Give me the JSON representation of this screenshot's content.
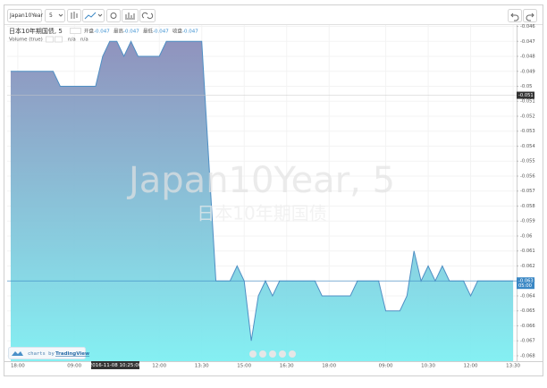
{
  "toolbar": {
    "symbol": "Japan10Year",
    "interval": "5"
  },
  "legend": {
    "title": "日本10年期国债, 5",
    "ohlc": [
      {
        "label": "开盘",
        "value": -0.047
      },
      {
        "label": "最高",
        "value": -0.047
      },
      {
        "label": "最低",
        "value": -0.047
      },
      {
        "label": "收盘",
        "value": -0.047
      }
    ],
    "volume": "Volume (true)",
    "volume_values": [
      "n/a",
      "n/a"
    ]
  },
  "branding": {
    "prefix": "charts by",
    "name": "TradingView"
  },
  "chart_data": {
    "type": "area",
    "watermark": "Japan10Year, 5",
    "watermark_sub": "日本10年期国债",
    "categories": [
      null,
      "18:00",
      null,
      null,
      null,
      null,
      null,
      null,
      null,
      "09:00",
      null,
      null,
      null,
      null,
      null,
      null,
      null,
      null,
      null,
      null,
      null,
      "12:00",
      null,
      null,
      null,
      null,
      null,
      "13:30",
      null,
      null,
      null,
      null,
      null,
      "15:00",
      null,
      null,
      null,
      null,
      null,
      "16:30",
      null,
      null,
      null,
      null,
      null,
      "18:00",
      null,
      null,
      null,
      null,
      null,
      null,
      null,
      "09:00",
      null,
      null,
      null,
      null,
      null,
      "10:30",
      null,
      null,
      null,
      null,
      null,
      "12:00",
      null,
      null,
      null,
      null,
      null,
      "13:30"
    ],
    "values": [
      -0.049,
      -0.049,
      -0.049,
      -0.049,
      -0.049,
      -0.049,
      -0.049,
      -0.05,
      -0.05,
      -0.05,
      -0.05,
      -0.05,
      -0.05,
      -0.048,
      -0.047,
      -0.047,
      -0.048,
      -0.047,
      -0.048,
      -0.048,
      -0.048,
      -0.048,
      -0.047,
      -0.047,
      -0.047,
      -0.047,
      -0.047,
      -0.047,
      -0.055,
      -0.063,
      -0.063,
      -0.063,
      -0.062,
      -0.063,
      -0.067,
      -0.064,
      -0.063,
      -0.064,
      -0.063,
      -0.063,
      -0.063,
      -0.063,
      -0.063,
      -0.063,
      -0.064,
      -0.064,
      -0.064,
      -0.064,
      -0.064,
      -0.063,
      -0.063,
      -0.063,
      -0.063,
      -0.065,
      -0.065,
      -0.065,
      -0.064,
      -0.061,
      -0.063,
      -0.062,
      -0.063,
      -0.062,
      -0.063,
      -0.063,
      -0.063,
      -0.064,
      -0.063,
      -0.063,
      -0.063,
      -0.063,
      -0.063,
      -0.063
    ],
    "color": "#4f8fc4",
    "fill_top": "#8a8dba",
    "fill_bottom": "#7eeff2",
    "ylim": [
      -0.06836,
      -0.04591
    ],
    "yticks": [
      -0.046,
      -0.047,
      -0.048,
      -0.049,
      -0.05,
      -0.051,
      -0.052,
      -0.053,
      -0.054,
      -0.055,
      -0.056,
      -0.057,
      -0.058,
      -0.059,
      -0.06,
      -0.061,
      -0.062,
      -0.063,
      -0.064,
      -0.065,
      -0.066,
      -0.067,
      -0.068
    ],
    "grid": true,
    "crosshair_price": {
      "value": -0.0506,
      "label": "-0.051"
    },
    "crosshair_time": "2016-11-08 10:25:00",
    "countdown": "05:00"
  }
}
